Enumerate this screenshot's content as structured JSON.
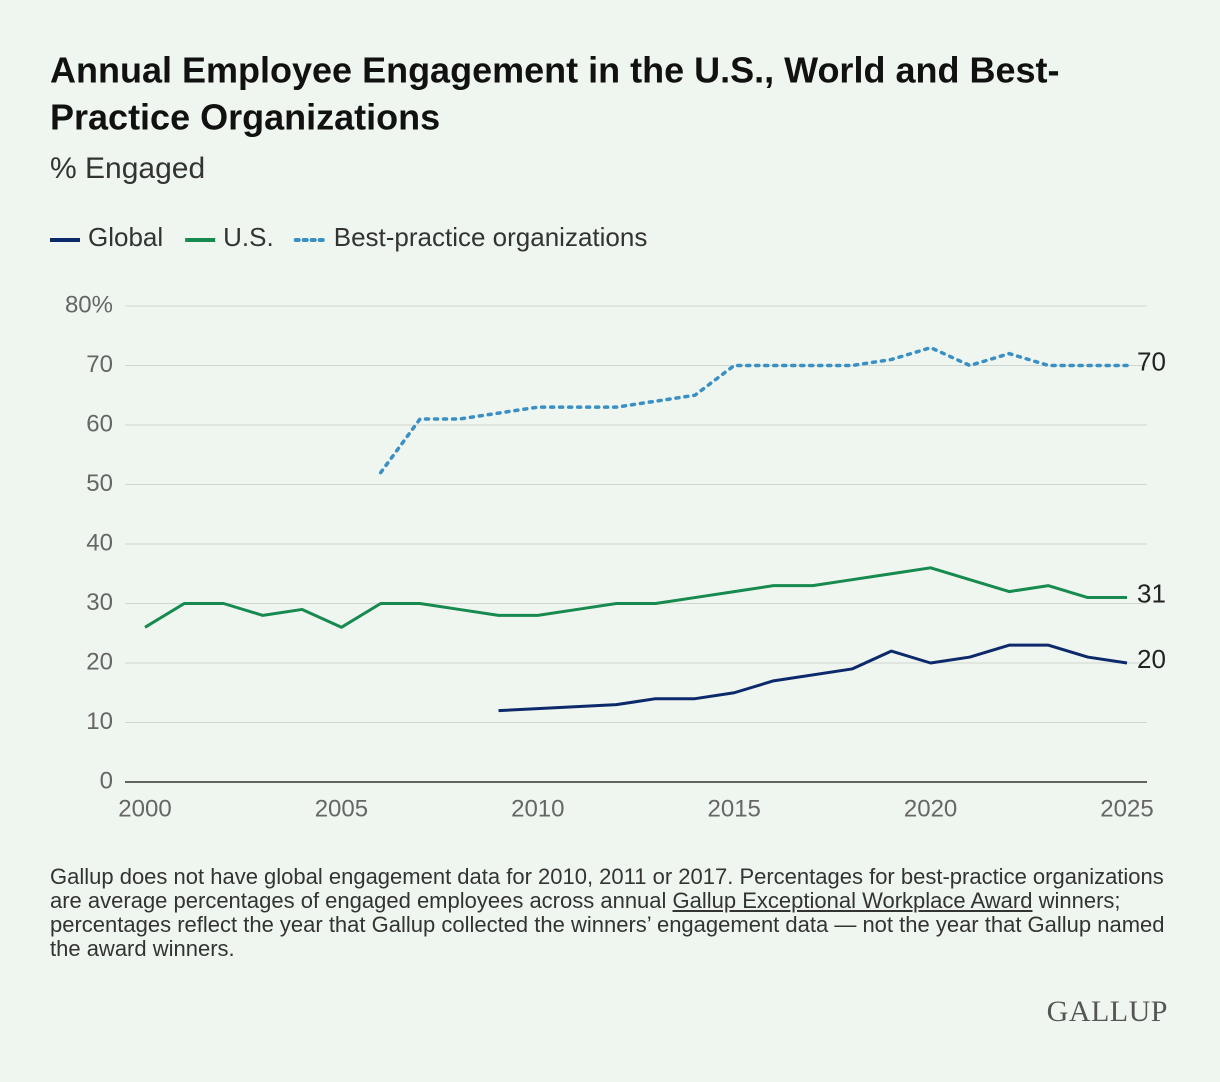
{
  "chart_data": {
    "type": "line",
    "title": "Annual Employee Engagement in the U.S., World and Best-Practice Organizations",
    "subtitle": "% Engaged",
    "series": [
      {
        "name": "Global",
        "color": "#0c2a6b",
        "line_style": "solid",
        "x": [
          2009,
          2012,
          2013,
          2014,
          2015,
          2016,
          2018,
          2019,
          2020,
          2021,
          2022,
          2023,
          2024,
          2025
        ],
        "values": [
          12,
          13,
          14,
          14,
          15,
          17,
          19,
          22,
          20,
          21,
          23,
          23,
          21,
          20
        ]
      },
      {
        "name": "U.S.",
        "color": "#178a4f",
        "line_style": "solid",
        "x": [
          2000,
          2001,
          2002,
          2003,
          2004,
          2005,
          2006,
          2007,
          2008,
          2009,
          2010,
          2011,
          2012,
          2013,
          2014,
          2015,
          2016,
          2017,
          2018,
          2019,
          2020,
          2021,
          2022,
          2023,
          2024,
          2025
        ],
        "values": [
          26,
          30,
          30,
          28,
          29,
          26,
          30,
          30,
          29,
          28,
          28,
          29,
          30,
          30,
          31,
          32,
          33,
          33,
          34,
          35,
          36,
          34,
          32,
          33,
          31,
          31
        ]
      },
      {
        "name": "Best-practice organizations",
        "color": "#3a8fc5",
        "line_style": "dotted",
        "x": [
          2006,
          2007,
          2008,
          2009,
          2010,
          2011,
          2012,
          2013,
          2014,
          2015,
          2016,
          2017,
          2018,
          2019,
          2020,
          2021,
          2022,
          2023,
          2024,
          2025
        ],
        "values": [
          52,
          61,
          61,
          62,
          63,
          63,
          63,
          64,
          65,
          70,
          70,
          70,
          70,
          71,
          73,
          70,
          72,
          70,
          70,
          70
        ]
      }
    ],
    "xlim": [
      2000,
      2025
    ],
    "xticks": [
      2000,
      2005,
      2010,
      2015,
      2020,
      2025
    ],
    "ylim": [
      0,
      80
    ],
    "yticks": [
      0,
      10,
      20,
      30,
      40,
      50,
      60,
      70,
      {
        "value": 80,
        "label": "80%"
      }
    ],
    "grid": true,
    "legend": "top-left",
    "end_labels": true
  },
  "footnote": [
    "Gallup does not have global engagement data for 2010, 2011 or 2017. Percentages for best-practice organizations are average percentages of engaged employees across annual ",
    "Gallup Exceptional Workplace Award",
    " winners; percentages reflect the year that Gallup collected the winners’ engagement data — not the year that Gallup named the award winners."
  ],
  "logo": "GALLUP"
}
